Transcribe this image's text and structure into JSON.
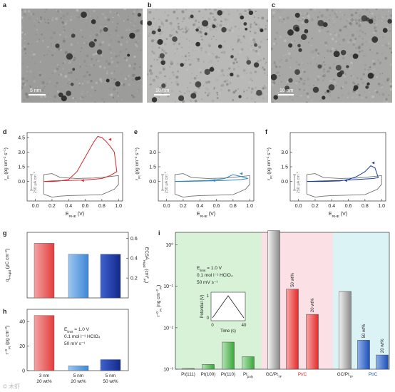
{
  "panels": {
    "a": {
      "letter": "a",
      "scalebar": "5 nm"
    },
    "b": {
      "letter": "b",
      "scalebar": "10 nm"
    },
    "c": {
      "letter": "c",
      "scalebar": "10 nm"
    },
    "d": {
      "letter": "d"
    },
    "e": {
      "letter": "e"
    },
    "f": {
      "letter": "f"
    },
    "g": {
      "letter": "g"
    },
    "h": {
      "letter": "h"
    },
    "i": {
      "letter": "i"
    }
  },
  "cv": {
    "ylabel": "r_Pt (pg cm⁻² s⁻¹)",
    "xlabel": "E_RHE (V)",
    "yticks": [
      "3.0",
      "1.5",
      "0.0"
    ],
    "yticks_ef": [
      "3.0",
      "1.5",
      "0.0"
    ],
    "xticks": [
      "0.0",
      "0.2",
      "0.4",
      "0.6",
      "0.8",
      "1.0"
    ],
    "current_scale": "250 μA cm⁻²",
    "colors": {
      "d": "#d9252b",
      "e": "#2f86c8",
      "f": "#1b3f9e",
      "cv": "#707070"
    },
    "top_tick_d": "4.5",
    "xlim": [
      -0.1,
      1.05
    ],
    "ylim": [
      -2.0,
      5.0
    ],
    "d": {
      "dissolution": [
        [
          0.1,
          0.0
        ],
        [
          0.2,
          0.0
        ],
        [
          0.3,
          0.05
        ],
        [
          0.4,
          0.2
        ],
        [
          0.5,
          1.0
        ],
        [
          0.6,
          2.5
        ],
        [
          0.7,
          4.0
        ],
        [
          0.75,
          4.6
        ],
        [
          0.8,
          4.5
        ],
        [
          0.85,
          4.1
        ],
        [
          0.9,
          3.6
        ],
        [
          0.95,
          3.0
        ],
        [
          0.98,
          1.0
        ],
        [
          0.9,
          0.6
        ],
        [
          0.8,
          0.3
        ],
        [
          0.6,
          0.15
        ],
        [
          0.4,
          0.1
        ],
        [
          0.2,
          0.05
        ],
        [
          0.1,
          0.0
        ]
      ]
    },
    "e": {
      "dissolution": [
        [
          0.1,
          0.0
        ],
        [
          0.3,
          0.05
        ],
        [
          0.5,
          0.1
        ],
        [
          0.6,
          0.2
        ],
        [
          0.7,
          0.3
        ],
        [
          0.8,
          0.7
        ],
        [
          0.9,
          0.5
        ],
        [
          0.98,
          0.3
        ],
        [
          0.9,
          0.2
        ],
        [
          0.7,
          0.1
        ],
        [
          0.5,
          0.05
        ],
        [
          0.2,
          0.0
        ],
        [
          0.1,
          0.0
        ]
      ]
    },
    "f": {
      "dissolution": [
        [
          0.1,
          0.0
        ],
        [
          0.3,
          0.0
        ],
        [
          0.5,
          0.05
        ],
        [
          0.6,
          0.2
        ],
        [
          0.7,
          0.5
        ],
        [
          0.8,
          1.0
        ],
        [
          0.87,
          1.6
        ],
        [
          0.92,
          1.4
        ],
        [
          0.96,
          0.4
        ],
        [
          0.9,
          0.3
        ],
        [
          0.7,
          0.2
        ],
        [
          0.5,
          0.1
        ],
        [
          0.3,
          0.05
        ],
        [
          0.1,
          0.0
        ]
      ]
    }
  },
  "g": {
    "ylabel_left": "q_H-upd (μC cm⁻²)",
    "ylabel_right": "ECSA_Hupd (cm²_Pt)",
    "right_ticks": [
      "0.6",
      "0.4",
      "0.2"
    ],
    "chart_data": {
      "type": "bar",
      "categories": [
        "3 nm 20 wt%",
        "5 nm 20 wt%",
        "5 nm 50 wt%"
      ],
      "values": [
        0.55,
        0.44,
        0.44
      ],
      "ylim": [
        0,
        0.66
      ]
    }
  },
  "h": {
    "ylabel": "r⁻⁰_Pt (pg cm⁻²)",
    "yticks": [
      "40",
      "20",
      "0"
    ],
    "cond1": "E_limit = 1.0 V",
    "cond2": "0.1 mol l⁻¹ HClO₄",
    "cond3": "50 mV s⁻¹",
    "cat1a": "3 nm",
    "cat1b": "20 wt%",
    "cat2a": "5 nm",
    "cat2b": "20 wt%",
    "cat3a": "5 nm",
    "cat3b": "50 wt%",
    "chart_data": {
      "type": "bar",
      "categories": [
        "3 nm 20 wt%",
        "5 nm 20 wt%",
        "5 nm 50 wt%"
      ],
      "values": [
        45,
        4,
        9
      ],
      "ylim": [
        0,
        50
      ]
    }
  },
  "i": {
    "ylabel": "r⁻⁰_Pt (ng cm⁻²_Pt)",
    "yticks": [
      "10⁰",
      "10⁻¹",
      "10⁻²",
      "10⁻³"
    ],
    "cond1": "E_limit = 1.0 V",
    "cond2": "0.1 mol l⁻¹ HClO₄",
    "cond3": "50 mV s⁻¹",
    "inset_ylabel": "Potential (V)",
    "inset_xlabel": "Time (s)",
    "inset_yticks": [
      "1",
      "0"
    ],
    "inset_xticks": [
      "0",
      "40"
    ],
    "labels": [
      "Pt(111)",
      "Pt(100)",
      "Pt(110)",
      "Pt_poly",
      "GC/Pt_TF",
      "Pt/C",
      "GC/Pt_TF",
      "Pt/C"
    ],
    "bar_annotations": [
      "50 wt%",
      "20 wt%",
      "50 wt%",
      "20 wt%"
    ],
    "region_colors": [
      "#d8f2d8",
      "#fbe1e5",
      "#dcf3f6"
    ],
    "chart_data": {
      "type": "bar",
      "yscale": "log",
      "ylim": [
        0.001,
        2.0
      ],
      "categories": [
        "Pt(111)",
        "Pt(100)",
        "Pt(110)",
        "Pt_poly",
        "GC/Pt_TF",
        "Pt/C 50 wt%",
        "Pt/C 20 wt%",
        "GC/Pt_TF",
        "Pt/C 50 wt%",
        "Pt/C 20 wt%"
      ],
      "values": [
        0.001,
        0.0013,
        0.0045,
        0.002,
        2.2,
        0.085,
        0.021,
        0.075,
        0.005,
        0.0022
      ],
      "colors": [
        "#3aa63a",
        "#3aa63a",
        "#3aa63a",
        "#3aa63a",
        "#8a8a8a",
        "#e52b2b",
        "#e52b2b",
        "#8a8a8a",
        "#1e4fb8",
        "#1e4fb8"
      ]
    }
  },
  "watermark": "© 木虾"
}
